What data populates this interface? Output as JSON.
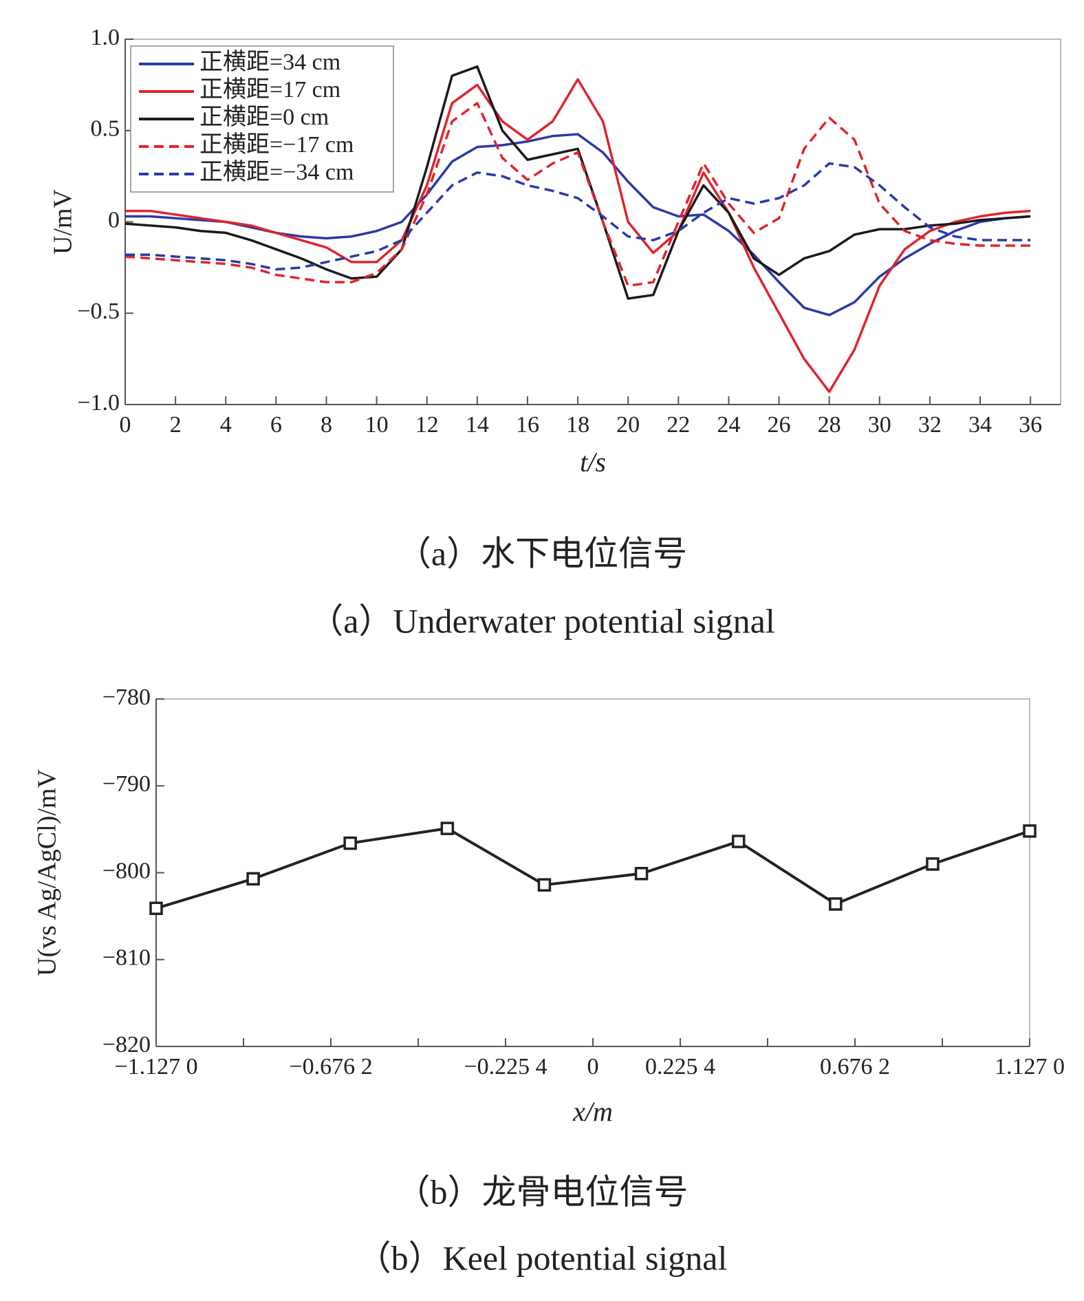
{
  "chart_data": [
    {
      "type": "line",
      "xlabel": "t/s",
      "ylabel": "U/mV",
      "caption_zh": "（a）水下电位信号",
      "caption_en": "（a）Underwater potential signal",
      "x": [
        0,
        1,
        2,
        3,
        4,
        5,
        6,
        7,
        8,
        9,
        10,
        11,
        12,
        13,
        14,
        15,
        16,
        17,
        18,
        19,
        20,
        21,
        22,
        23,
        24,
        25,
        26,
        27,
        28,
        29,
        30,
        31,
        32,
        33,
        34,
        35,
        36
      ],
      "series": [
        {
          "name": "正横距=34 cm",
          "color": "#2a3aa8",
          "dash": false,
          "values": [
            0.03,
            0.03,
            0.02,
            0.01,
            0,
            -0.03,
            -0.06,
            -0.08,
            -0.09,
            -0.08,
            -0.05,
            0.0,
            0.15,
            0.33,
            0.41,
            0.42,
            0.44,
            0.47,
            0.48,
            0.38,
            0.22,
            0.08,
            0.03,
            0.04,
            -0.05,
            -0.18,
            -0.33,
            -0.47,
            -0.51,
            -0.44,
            -0.3,
            -0.2,
            -0.12,
            -0.05,
            0,
            0.02,
            0.03
          ]
        },
        {
          "name": "正横距=17 cm",
          "color": "#e0242c",
          "dash": false,
          "values": [
            0.06,
            0.06,
            0.04,
            0.02,
            0.0,
            -0.02,
            -0.06,
            -0.1,
            -0.14,
            -0.22,
            -0.22,
            -0.1,
            0.2,
            0.65,
            0.75,
            0.55,
            0.45,
            0.55,
            0.78,
            0.55,
            0,
            -0.17,
            -0.05,
            0.27,
            0.05,
            -0.25,
            -0.5,
            -0.75,
            -0.93,
            -0.7,
            -0.35,
            -0.15,
            -0.05,
            0,
            0.03,
            0.05,
            0.06
          ]
        },
        {
          "name": "正横距=0 cm",
          "color": "#1a1a1a",
          "dash": false,
          "values": [
            -0.01,
            -0.02,
            -0.03,
            -0.05,
            -0.06,
            -0.1,
            -0.15,
            -0.2,
            -0.26,
            -0.31,
            -0.3,
            -0.15,
            0.3,
            0.8,
            0.85,
            0.5,
            0.34,
            0.37,
            0.4,
            0.0,
            -0.42,
            -0.4,
            -0.05,
            0.2,
            0.05,
            -0.2,
            -0.29,
            -0.2,
            -0.16,
            -0.07,
            -0.04,
            -0.04,
            -0.02,
            -0.01,
            0.01,
            0.02,
            0.03
          ]
        },
        {
          "name": "正横距=−17 cm",
          "color": "#e0242c",
          "dash": true,
          "values": [
            -0.19,
            -0.2,
            -0.21,
            -0.22,
            -0.23,
            -0.25,
            -0.29,
            -0.31,
            -0.33,
            -0.33,
            -0.28,
            -0.15,
            0.15,
            0.55,
            0.65,
            0.35,
            0.23,
            0.32,
            0.38,
            0.0,
            -0.35,
            -0.33,
            0.0,
            0.32,
            0.1,
            -0.06,
            0.02,
            0.4,
            0.57,
            0.45,
            0.1,
            -0.05,
            -0.1,
            -0.12,
            -0.13,
            -0.13,
            -0.13
          ]
        },
        {
          "name": "正横距=−34 cm",
          "color": "#2a3aa8",
          "dash": true,
          "values": [
            -0.18,
            -0.18,
            -0.19,
            -0.2,
            -0.21,
            -0.23,
            -0.26,
            -0.25,
            -0.22,
            -0.19,
            -0.16,
            -0.1,
            0.05,
            0.2,
            0.27,
            0.25,
            0.2,
            0.17,
            0.13,
            0.03,
            -0.08,
            -0.1,
            -0.05,
            0.05,
            0.13,
            0.1,
            0.13,
            0.2,
            0.32,
            0.3,
            0.2,
            0.08,
            -0.03,
            -0.08,
            -0.1,
            -0.1,
            -0.1
          ]
        }
      ],
      "xlim": [
        0,
        37.2
      ],
      "xticks": [
        0,
        2,
        4,
        6,
        8,
        10,
        12,
        14,
        16,
        18,
        20,
        22,
        24,
        26,
        28,
        30,
        32,
        34,
        36
      ],
      "ylim": [
        -1,
        1
      ],
      "yticks": [
        {
          "value": -1,
          "label": "−1.0"
        },
        {
          "value": -0.5,
          "label": "−0.5"
        },
        0,
        0.5,
        {
          "value": 1,
          "label": "1.0"
        }
      ],
      "legend": "upper left",
      "grid": false
    },
    {
      "type": "line",
      "xlabel": "x/m",
      "ylabel": "U(vs Ag/AgCl)/mV",
      "caption_zh": "（b）龙骨电位信号",
      "caption_en": "（b）Keel potential signal",
      "x": [
        -1.127,
        -0.8766,
        -0.6262,
        -0.3757,
        -0.1252,
        0.1252,
        0.3757,
        0.6262,
        0.8766,
        1.127
      ],
      "series": [
        {
          "color": "#222222",
          "dash": false,
          "marker": "square",
          "values": [
            -804.1,
            -800.7,
            -796.6,
            -794.9,
            -801.4,
            -800.1,
            -796.4,
            -803.6,
            -799.0,
            -795.2
          ]
        }
      ],
      "xlim": [
        -1.127,
        1.127
      ],
      "xticks": [
        {
          "value": -1.127,
          "label": "−1.127 0"
        },
        {
          "value": -0.6762,
          "label": "−0.676 2"
        },
        {
          "value": -0.2254,
          "label": "−0.225 4"
        },
        0,
        {
          "value": 0.2254,
          "label": "0.225 4"
        },
        {
          "value": 0.6762,
          "label": "0.676 2"
        },
        {
          "value": 1.127,
          "label": "1.127 0"
        }
      ],
      "xminor_ticks": [
        -0.9016,
        -0.4508,
        0.4508,
        0.9016
      ],
      "ylim": [
        -820,
        -780
      ],
      "yticks": [
        {
          "value": -820,
          "label": "−820"
        },
        {
          "value": -810,
          "label": "−810"
        },
        {
          "value": -800,
          "label": "−800"
        },
        {
          "value": -790,
          "label": "−790"
        },
        {
          "value": -780,
          "label": "−780"
        }
      ],
      "grid": false
    }
  ]
}
